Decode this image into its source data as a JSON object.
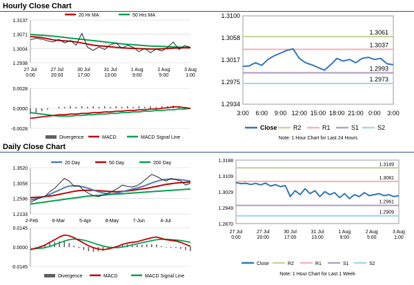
{
  "sections": {
    "hourly_title": "Hourly Close Chart",
    "daily_title": "Daily Close Chart"
  },
  "colors": {
    "close": "#2e75b6",
    "r2": "#c3d69b",
    "r1": "#f4b4b4",
    "s1": "#b3a2c7",
    "s2": "#a5d8e6",
    "ma_red": "#c00000",
    "ma_green": "#00a050",
    "ma_blue": "#4a7ebb",
    "divergence": "#606060"
  },
  "chart_data": [
    {
      "id": "hourly_price",
      "type": "line",
      "legend": [
        "20 Hr MA",
        "50 Hrs MA"
      ],
      "x_labels": [
        "27 Jul\n0:00",
        "27 Jul\n20:00",
        "30 Jul\n17:00",
        "31 Jul\n13:00",
        "1 Aug\n9:00",
        "2 Aug\n5:00",
        "3 Aug\n1:00"
      ],
      "y_ticks": [
        "1.3137",
        "1.3071",
        "1.3004",
        "1.2938"
      ],
      "ylim": [
        1.2938,
        1.3137
      ],
      "series": [
        {
          "name": "Close",
          "values": [
            1.3045,
            1.3052,
            1.3048,
            1.304,
            1.3035,
            1.3047,
            1.303,
            1.3042,
            1.302,
            1.3075,
            1.301,
            1.2995,
            1.3012,
            1.3,
            1.3022,
            1.303,
            1.3005,
            1.302,
            1.301,
            1.299,
            1.3005,
            1.2985,
            1.3002,
            1.2993,
            1.301,
            1.3035,
            1.3,
            1.3018,
            1.301
          ]
        },
        {
          "name": "20 Hr MA",
          "values": [
            1.306,
            1.3058,
            1.3055,
            1.305,
            1.3045,
            1.3042,
            1.304,
            1.3038,
            1.3035,
            1.303,
            1.3025,
            1.302,
            1.3017,
            1.3015,
            1.3012,
            1.301,
            1.3008,
            1.3006,
            1.3005,
            1.3004,
            1.3003,
            1.3002,
            1.3002,
            1.3003,
            1.3004,
            1.3006,
            1.3007,
            1.3008,
            1.3008
          ]
        },
        {
          "name": "50 Hrs MA",
          "values": [
            1.307,
            1.3068,
            1.3066,
            1.3064,
            1.3062,
            1.3059,
            1.3056,
            1.3053,
            1.305,
            1.3047,
            1.3044,
            1.3041,
            1.3038,
            1.3035,
            1.3032,
            1.3029,
            1.3026,
            1.3024,
            1.3022,
            1.302,
            1.3018,
            1.3016,
            1.3015,
            1.3014,
            1.3013,
            1.3012,
            1.3011,
            1.301,
            1.301
          ]
        }
      ]
    },
    {
      "id": "hourly_macd",
      "type": "line",
      "legend": [
        "Divergence",
        "MACD",
        "MACD Signal Line"
      ],
      "y_ticks": [
        "0.0028",
        "0.0000",
        "-0.0028"
      ],
      "ylim": [
        -0.0028,
        0.0028
      ],
      "series": [
        {
          "name": "MACD",
          "values": [
            -0.0014,
            -0.0013,
            -0.0012,
            -0.0011,
            -0.001,
            -0.0009,
            -0.0009,
            -0.0008,
            -0.0008,
            -0.0007,
            -0.0007,
            -0.0006,
            -0.0006,
            -0.0005,
            -0.0005,
            -0.0004,
            -0.0004,
            -0.0003,
            -0.0003,
            -0.0002,
            -0.0002,
            -0.0001,
            -0.0001,
            0.0,
            0.0001,
            0.0002,
            0.0002,
            0.0001,
            0.0
          ]
        },
        {
          "name": "MACD Signal Line",
          "values": [
            -0.0006,
            -0.0007,
            -0.0008,
            -0.0009,
            -0.001,
            -0.0011,
            -0.0011,
            -0.0011,
            -0.001,
            -0.001,
            -0.0009,
            -0.0009,
            -0.0008,
            -0.0008,
            -0.0007,
            -0.0007,
            -0.0006,
            -0.0006,
            -0.0005,
            -0.0005,
            -0.0004,
            -0.0004,
            -0.0003,
            -0.0003,
            -0.0002,
            -0.0002,
            -0.0001,
            -0.0001,
            0.0
          ]
        }
      ]
    },
    {
      "id": "hourly_last24",
      "type": "line",
      "note": "Note: 1 Hour Chart for Last 24 Hours",
      "legend": [
        "Close",
        "R2",
        "R1",
        "S1",
        "S2"
      ],
      "x_labels": [
        "3:00",
        "6:00",
        "9:00",
        "12:00",
        "15:00",
        "18:00",
        "21:00",
        "0:00",
        "3:00"
      ],
      "y_ticks": [
        "1.3100",
        "1.3058",
        "1.3017",
        "1.2975",
        "1.2934"
      ],
      "ylim": [
        1.2934,
        1.31
      ],
      "levels": [
        {
          "name": "R2",
          "value": 1.3061,
          "label": "1.3061"
        },
        {
          "name": "R1",
          "value": 1.3037,
          "label": "1.3037"
        },
        {
          "name": "S1",
          "value": 1.2993,
          "label": "1.2993"
        },
        {
          "name": "S2",
          "value": 1.2973,
          "label": "1.2973"
        }
      ],
      "values": [
        1.3005,
        1.3006,
        1.3012,
        1.3007,
        1.3018,
        1.3025,
        1.303,
        1.3035,
        1.3038,
        1.302,
        1.3012,
        1.3008,
        1.3003,
        1.2998,
        1.3008,
        1.302,
        1.3015,
        1.3018,
        1.3012,
        1.302,
        1.3022,
        1.3018,
        1.302,
        1.301,
        1.3008
      ]
    },
    {
      "id": "daily_price",
      "type": "line",
      "legend": [
        "20 Day",
        "50 Day",
        "200 Day"
      ],
      "x_labels": [
        "2-Feb",
        "6-Mar",
        "5-Apr",
        "8-May",
        "7-Jun",
        "4-Jul"
      ],
      "y_ticks": [
        "1.3520",
        "1.3058",
        "1.2596",
        "1.2133"
      ],
      "ylim": [
        1.2133,
        1.352
      ],
      "series": [
        {
          "name": "Close",
          "values": [
            1.248,
            1.255,
            1.262,
            1.266,
            1.28,
            1.29,
            1.305,
            1.32,
            1.312,
            1.296,
            1.298,
            1.284,
            1.275,
            1.268,
            1.265,
            1.27,
            1.275,
            1.282,
            1.29,
            1.3,
            1.296,
            1.294,
            1.298,
            1.308,
            1.32,
            1.332,
            1.326,
            1.318,
            1.312,
            1.32,
            1.316,
            1.312,
            1.3,
            1.305
          ]
        },
        {
          "name": "20 Day",
          "values": [
            1.255,
            1.258,
            1.262,
            1.266,
            1.272,
            1.279,
            1.285,
            1.292,
            1.297,
            1.298,
            1.297,
            1.294,
            1.29,
            1.285,
            1.28,
            1.276,
            1.274,
            1.274,
            1.276,
            1.28,
            1.284,
            1.288,
            1.291,
            1.295,
            1.3,
            1.306,
            1.311,
            1.315,
            1.317,
            1.318,
            1.317,
            1.316,
            1.314,
            1.312
          ]
        },
        {
          "name": "50 Day",
          "values": [
            1.262,
            1.263,
            1.264,
            1.265,
            1.267,
            1.269,
            1.272,
            1.275,
            1.278,
            1.281,
            1.283,
            1.284,
            1.284,
            1.284,
            1.283,
            1.282,
            1.281,
            1.28,
            1.28,
            1.281,
            1.282,
            1.284,
            1.286,
            1.288,
            1.29,
            1.293,
            1.296,
            1.299,
            1.302,
            1.304,
            1.306,
            1.307,
            1.308,
            1.309
          ]
        },
        {
          "name": "200 Day",
          "values": [
            1.243,
            1.245,
            1.247,
            1.249,
            1.251,
            1.253,
            1.255,
            1.257,
            1.259,
            1.261,
            1.263,
            1.265,
            1.267,
            1.268,
            1.269,
            1.27,
            1.271,
            1.272,
            1.273,
            1.274,
            1.275,
            1.276,
            1.277,
            1.278,
            1.279,
            1.28,
            1.281,
            1.282,
            1.283,
            1.284,
            1.285,
            1.286,
            1.287,
            1.288
          ]
        }
      ]
    },
    {
      "id": "daily_macd",
      "type": "line",
      "legend": [
        "Divergence",
        "MACD",
        "MACD Signal Line"
      ],
      "y_ticks": [
        "0.0145",
        "0.0000",
        "-0.0145"
      ],
      "ylim": [
        -0.0145,
        0.0145
      ],
      "series": [
        {
          "name": "MACD",
          "values": [
            -0.002,
            -0.001,
            0.0,
            0.0015,
            0.0035,
            0.0055,
            0.0075,
            0.009,
            0.0085,
            0.007,
            0.005,
            0.003,
            0.001,
            -0.0005,
            -0.0015,
            -0.002,
            -0.0015,
            -0.0005,
            0.0005,
            0.002,
            0.003,
            0.0035,
            0.004,
            0.005,
            0.006,
            0.007,
            0.0075,
            0.0065,
            0.0055,
            0.005,
            0.0045,
            0.0035,
            0.002,
            0.0005
          ]
        },
        {
          "name": "MACD Signal Line",
          "values": [
            -0.0015,
            -0.0013,
            -0.001,
            -0.0005,
            0.0005,
            0.0018,
            0.0032,
            0.0045,
            0.0055,
            0.006,
            0.0058,
            0.0052,
            0.0042,
            0.003,
            0.0018,
            0.0008,
            0.0,
            -0.0004,
            -0.0004,
            0.0,
            0.0008,
            0.0016,
            0.0024,
            0.0032,
            0.004,
            0.0048,
            0.0055,
            0.0058,
            0.0058,
            0.0056,
            0.0053,
            0.0049,
            0.0043,
            0.0035
          ]
        }
      ]
    },
    {
      "id": "daily_lastweek",
      "type": "line",
      "note": "Note: 1 Hour Chart for Last 1 Week",
      "legend": [
        "Close",
        "R2",
        "R1",
        "S1",
        "S2"
      ],
      "x_labels": [
        "27 Jul\n0:00",
        "27 Jul\n20:00",
        "30 Jul\n17:00",
        "31 Jul\n13:00",
        "1 Aug\n9:00",
        "2 Aug\n5:00",
        "3 Aug\n1:00"
      ],
      "y_ticks": [
        "1.3188",
        "1.3109",
        "1.3029",
        "1.2949",
        "1.2870"
      ],
      "ylim": [
        1.287,
        1.3188
      ],
      "levels": [
        {
          "name": "R2",
          "value": 1.3149,
          "label": "1.3149"
        },
        {
          "name": "R1",
          "value": 1.3081,
          "label": "1.3081"
        },
        {
          "name": "S1",
          "value": 1.2961,
          "label": "1.2961"
        },
        {
          "name": "S2",
          "value": 1.2909,
          "label": "1.2909"
        }
      ],
      "values": [
        1.3075,
        1.307,
        1.3072,
        1.3066,
        1.3071,
        1.3064,
        1.3073,
        1.3058,
        1.3065,
        1.3055,
        1.306,
        1.3005,
        1.3035,
        1.3015,
        1.3045,
        1.302,
        1.3035,
        1.3005,
        1.303,
        1.3015,
        1.3025,
        1.3,
        1.302,
        1.2995,
        1.3015,
        1.3005,
        1.3025,
        1.301,
        1.3015,
        1.302,
        1.301,
        1.3015,
        1.3005,
        1.301
      ]
    }
  ]
}
